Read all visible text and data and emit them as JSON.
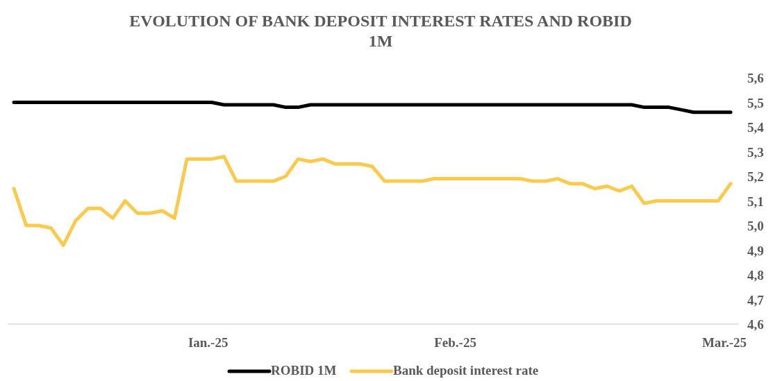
{
  "chart_data": {
    "type": "line",
    "title": "EVOLUTION OF BANK DEPOSIT INTEREST RATES AND ROBID 1M",
    "categories": [
      null,
      null,
      null,
      null,
      null,
      null,
      null,
      null,
      null,
      null,
      null,
      null,
      null,
      null,
      null,
      null,
      "Ian.-25",
      null,
      null,
      null,
      null,
      null,
      null,
      null,
      null,
      null,
      null,
      null,
      null,
      null,
      null,
      null,
      null,
      null,
      null,
      null,
      "Feb.-25",
      null,
      null,
      null,
      null,
      null,
      null,
      null,
      null,
      null,
      null,
      null,
      null,
      null,
      null,
      null,
      null,
      null,
      null,
      null,
      null,
      null,
      "Mar.-25"
    ],
    "series": [
      {
        "name": "ROBID 1M",
        "color": "#000000",
        "values": [
          5.5,
          5.5,
          5.5,
          5.5,
          5.5,
          5.5,
          5.5,
          5.5,
          5.5,
          5.5,
          5.5,
          5.5,
          5.5,
          5.5,
          5.5,
          5.5,
          5.5,
          5.49,
          5.49,
          5.49,
          5.49,
          5.49,
          5.48,
          5.48,
          5.49,
          5.49,
          5.49,
          5.49,
          5.49,
          5.49,
          5.49,
          5.49,
          5.49,
          5.49,
          5.49,
          5.49,
          5.49,
          5.49,
          5.49,
          5.49,
          5.49,
          5.49,
          5.49,
          5.49,
          5.49,
          5.49,
          5.49,
          5.49,
          5.49,
          5.49,
          5.49,
          5.48,
          5.48,
          5.48,
          5.47,
          5.46,
          5.46,
          5.46,
          5.46
        ]
      },
      {
        "name": "Bank deposit interest rate",
        "color": "#fbca4c",
        "values": [
          5.15,
          5.0,
          5.0,
          4.99,
          4.92,
          5.02,
          5.07,
          5.07,
          5.03,
          5.1,
          5.05,
          5.05,
          5.06,
          5.03,
          5.27,
          5.27,
          5.27,
          5.28,
          5.18,
          5.18,
          5.18,
          5.18,
          5.2,
          5.27,
          5.26,
          5.27,
          5.25,
          5.25,
          5.25,
          5.24,
          5.18,
          5.18,
          5.18,
          5.18,
          5.19,
          5.19,
          5.19,
          5.19,
          5.19,
          5.19,
          5.19,
          5.19,
          5.18,
          5.18,
          5.19,
          5.17,
          5.17,
          5.15,
          5.16,
          5.14,
          5.16,
          5.09,
          5.1,
          5.1,
          5.1,
          5.1,
          5.1,
          5.1,
          5.17
        ]
      }
    ],
    "ylim": [
      4.6,
      5.6
    ],
    "yticks": [
      {
        "value": 4.6,
        "label": "4,6"
      },
      {
        "value": 4.7,
        "label": "4,7"
      },
      {
        "value": 4.8,
        "label": "4,8"
      },
      {
        "value": 4.9,
        "label": "4,9"
      },
      {
        "value": 5.0,
        "label": "5,0"
      },
      {
        "value": 5.1,
        "label": "5,1"
      },
      {
        "value": 5.2,
        "label": "5,2"
      },
      {
        "value": 5.3,
        "label": "5,3"
      },
      {
        "value": 5.4,
        "label": "5,4"
      },
      {
        "value": 5.5,
        "label": "5,5"
      },
      {
        "value": 5.6,
        "label": "5,6"
      }
    ],
    "legend": "bottom",
    "marker": "none",
    "line_style": "solid"
  }
}
